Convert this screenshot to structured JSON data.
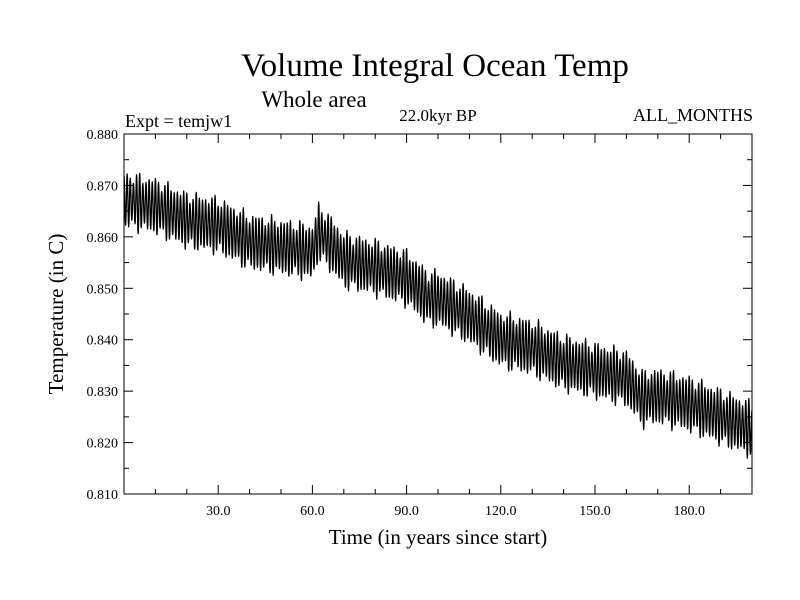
{
  "chart_data": {
    "type": "line",
    "title": "Volume Integral Ocean Temp",
    "subtitle": "Whole area",
    "experiment_label": "Expt = temjw1",
    "period_label": "22.0kyr BP",
    "months_label": "ALL_MONTHS",
    "xlabel": "Time (in years since start)",
    "ylabel": "Temperature (in C)",
    "xlim": [
      0,
      200
    ],
    "ylim": [
      0.81,
      0.88
    ],
    "xticks": [
      30,
      60,
      90,
      120,
      150,
      180
    ],
    "xtick_labels": [
      "30.0",
      "60.0",
      "90.0",
      "120.0",
      "150.0",
      "180.0"
    ],
    "yticks": [
      0.81,
      0.82,
      0.83,
      0.84,
      0.85,
      0.86,
      0.87,
      0.88
    ],
    "ytick_labels": [
      "0.810",
      "0.820",
      "0.830",
      "0.840",
      "0.850",
      "0.860",
      "0.870",
      "0.880"
    ],
    "series": [
      {
        "name": "Volume Integral Ocean Temp",
        "color": "#000000",
        "seasonal_amplitude": 0.0055,
        "trend": {
          "x": [
            0,
            10,
            20,
            30,
            40,
            50,
            60,
            62,
            66,
            70,
            80,
            90,
            97,
            100,
            110,
            120,
            130,
            140,
            150,
            160,
            165,
            170,
            180,
            190,
            200
          ],
          "y": [
            0.8672,
            0.866,
            0.8632,
            0.8622,
            0.859,
            0.858,
            0.857,
            0.861,
            0.8585,
            0.8555,
            0.854,
            0.852,
            0.848,
            0.848,
            0.8445,
            0.84,
            0.8385,
            0.8355,
            0.834,
            0.8325,
            0.8285,
            0.829,
            0.8275,
            0.825,
            0.8225
          ]
        }
      }
    ]
  }
}
